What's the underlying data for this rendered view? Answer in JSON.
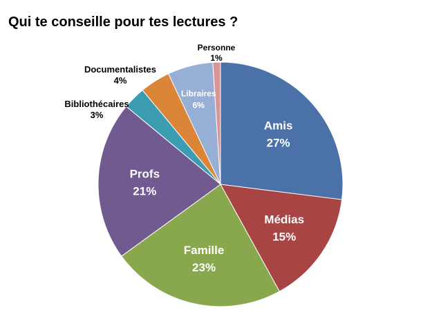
{
  "chart_data": {
    "type": "pie",
    "title": "Qui te conseille pour tes lectures ?",
    "slices": [
      {
        "label": "Amis",
        "value": 27,
        "value_label": "27%",
        "color": "#4A72A8"
      },
      {
        "label": "Médias",
        "value": 15,
        "value_label": "15%",
        "color": "#A84444"
      },
      {
        "label": "Famille",
        "value": 23,
        "value_label": "23%",
        "color": "#89A84E"
      },
      {
        "label": "Profs",
        "value": 21,
        "value_label": "21%",
        "color": "#715A90"
      },
      {
        "label": "Bibliothécaires",
        "value": 3,
        "value_label": "3%",
        "color": "#3C9CB0"
      },
      {
        "label": "Documentalistes",
        "value": 4,
        "value_label": "4%",
        "color": "#DB8539"
      },
      {
        "label": "Libraires",
        "value": 6,
        "value_label": "6%",
        "color": "#98AFD5"
      },
      {
        "label": "Personne",
        "value": 1,
        "value_label": "1%",
        "color": "#D89593"
      }
    ],
    "start_angle_deg": 90,
    "direction": "clockwise"
  }
}
